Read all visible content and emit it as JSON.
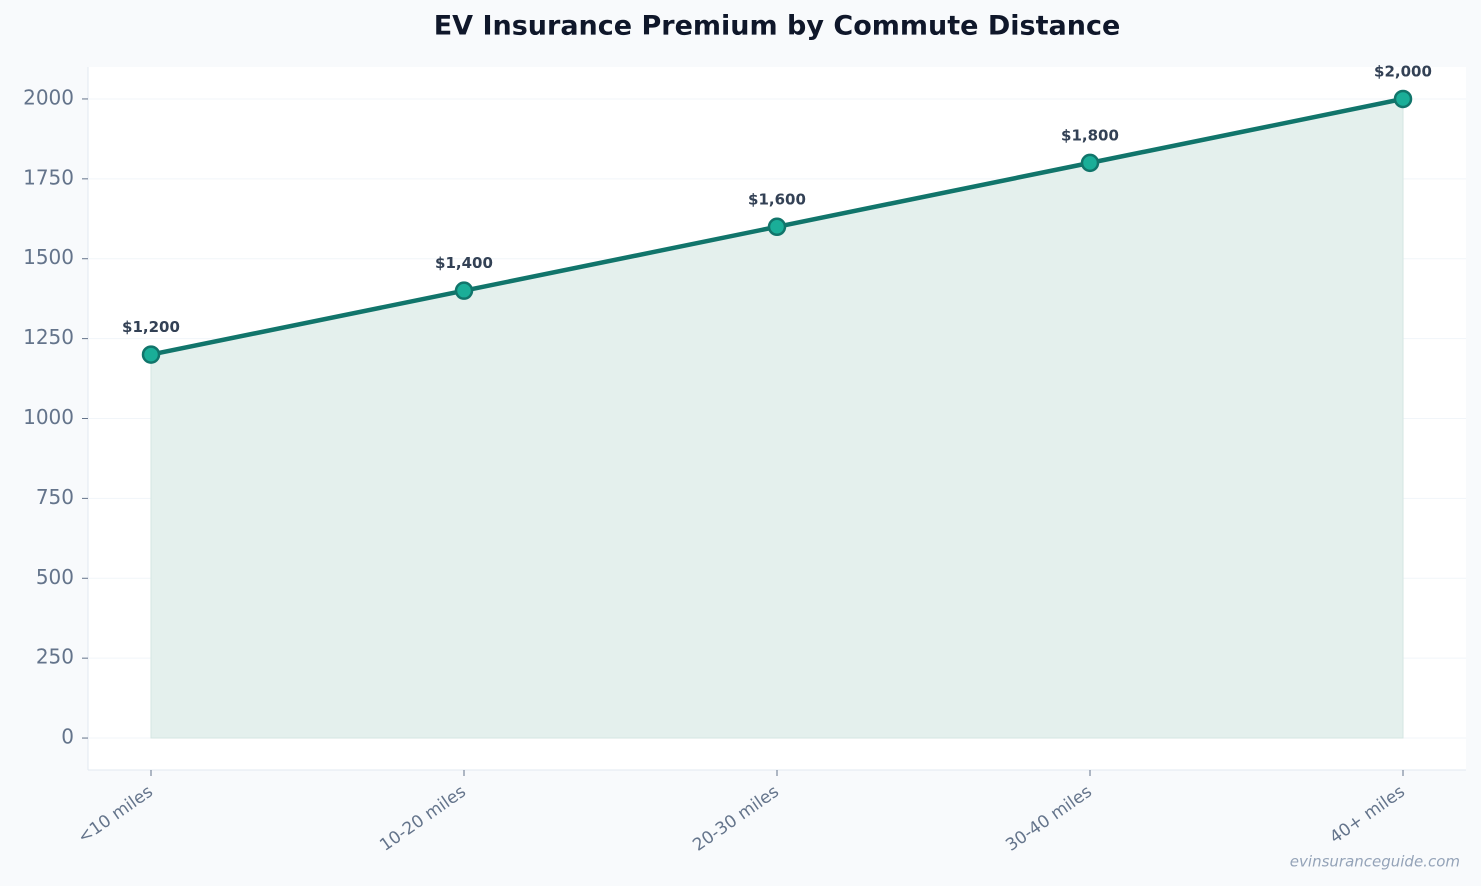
{
  "chart_data": {
    "type": "line",
    "title": "EV Insurance Premium by Commute Distance",
    "categories": [
      "<10 miles",
      "10-20 miles",
      "20-30 miles",
      "30-40 miles",
      "40+ miles"
    ],
    "series": [
      {
        "name": "Premium",
        "color": "#11756b",
        "marker_color": "#1aae98",
        "area_color": "#e4f0ed",
        "values": [
          1200,
          1400,
          1600,
          1800,
          2000
        ],
        "value_labels": [
          "$1,200",
          "$1,400",
          "$1,600",
          "$1,800",
          "$2,000"
        ]
      }
    ],
    "ylim": [
      -100,
      2100
    ],
    "yticks": [
      0,
      250,
      500,
      750,
      1000,
      1250,
      1500,
      1750,
      2000
    ],
    "grid": true,
    "watermark": "evinsuranceguide.com"
  }
}
